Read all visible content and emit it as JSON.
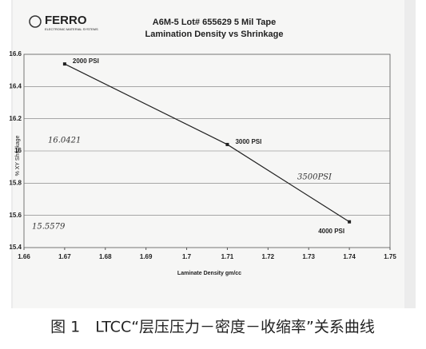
{
  "brand": {
    "name": "FERRO",
    "tagline": "ELECTRONIC MATERIAL SYSTEMS"
  },
  "chart_data": {
    "type": "line",
    "title": "A6M-5 Lot# 655629 5 Mil Tape",
    "subtitle": "Lamination Density vs Shrinkage",
    "x_label": "Laminate Density  gm/cc",
    "y_label": "% XY Shrinkage",
    "x": [
      1.67,
      1.71,
      1.74
    ],
    "series": [
      {
        "name": "Shrinkage",
        "color": "#222222",
        "values": [
          16.54,
          16.04,
          15.56
        ]
      }
    ],
    "point_labels": [
      "2000 PSI",
      "3000 PSI",
      "4000 PSI"
    ],
    "xlim": [
      1.66,
      1.75
    ],
    "xticks": [
      1.66,
      1.67,
      1.68,
      1.69,
      1.7,
      1.71,
      1.72,
      1.73,
      1.74,
      1.75
    ],
    "ylim": [
      15.4,
      16.6
    ],
    "yticks": [
      15.4,
      15.6,
      15.8,
      16,
      16.2,
      16.4,
      16.6
    ],
    "grid": true,
    "annotations": [
      "16.0421",
      "15.5579",
      "3500PSI"
    ]
  },
  "caption": "图 1　LTCC“层压压力－密度－收缩率”关系曲线"
}
